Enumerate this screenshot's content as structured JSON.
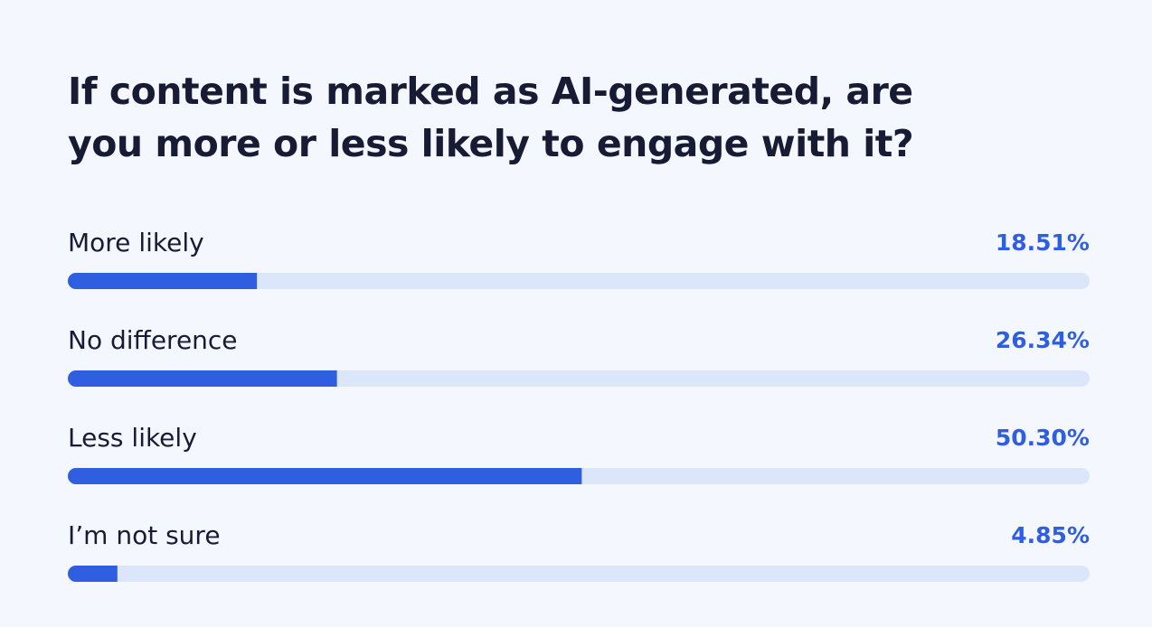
{
  "chart_data": {
    "type": "bar",
    "title": "If content is marked as AI-generated, are you more or less likely to engage with it?",
    "categories": [
      "More likely",
      "No difference",
      "Less likely",
      "I’m not sure"
    ],
    "values": [
      18.51,
      26.34,
      50.3,
      4.85
    ],
    "value_labels": [
      "18.51%",
      "26.34%",
      "50.30%",
      "4.85%"
    ],
    "color": "#2f5fe0",
    "track_color": "#dce6fb",
    "xlim": [
      0,
      100
    ]
  }
}
